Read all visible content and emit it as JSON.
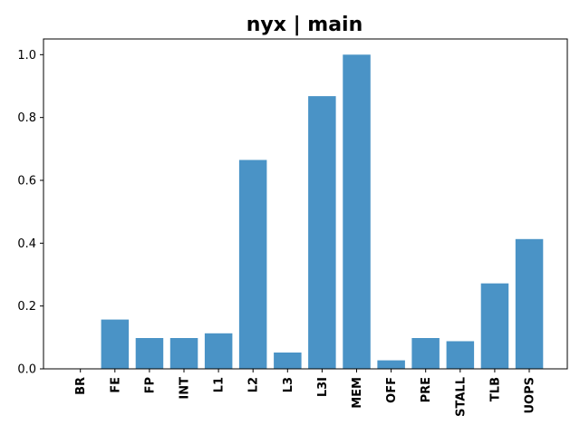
{
  "chart_data": {
    "type": "bar",
    "title": "nyx | main",
    "xlabel": "",
    "ylabel": "",
    "categories": [
      "BR",
      "FE",
      "FP",
      "INT",
      "L1",
      "L2",
      "L3",
      "L3I",
      "MEM",
      "OFF",
      "PRE",
      "STALL",
      "TLB",
      "UOPS"
    ],
    "values": [
      0.0,
      0.157,
      0.098,
      0.098,
      0.113,
      0.665,
      0.052,
      0.868,
      1.0,
      0.027,
      0.098,
      0.088,
      0.272,
      0.413
    ],
    "ylim": [
      0,
      1.05
    ],
    "yticks": [
      "0.0",
      "0.2",
      "0.4",
      "0.6",
      "0.8",
      "1.0"
    ],
    "bar_color": "#4a93c6",
    "grid": false,
    "legend": "none"
  }
}
